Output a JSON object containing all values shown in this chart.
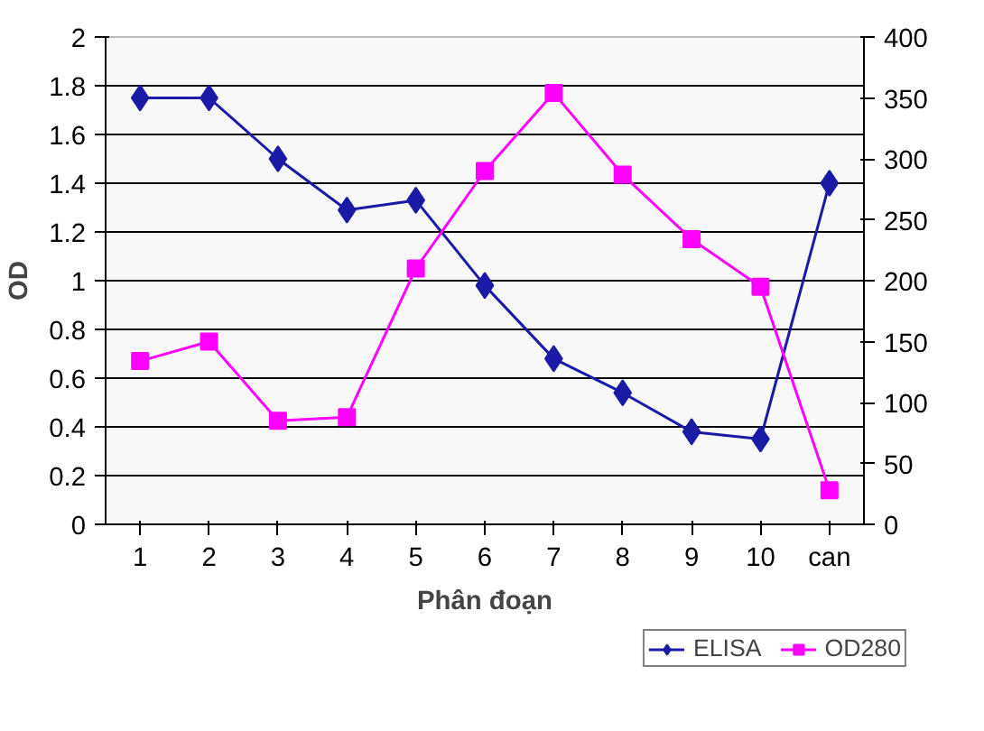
{
  "chart_data": {
    "type": "line",
    "xlabel": "Phân đoạn",
    "ylabel": "OD",
    "categories": [
      "1",
      "2",
      "3",
      "4",
      "5",
      "6",
      "7",
      "8",
      "9",
      "10",
      "can"
    ],
    "series": [
      {
        "name": "ELISA",
        "color": "#1a1aa6",
        "marker": "diamond",
        "values": [
          1.75,
          1.75,
          1.5,
          1.29,
          1.33,
          0.98,
          0.68,
          0.54,
          0.38,
          0.35,
          1.4
        ]
      },
      {
        "name": "OD280",
        "color": "#ff00ff",
        "marker": "square",
        "axis": "y2",
        "values": [
          134,
          150,
          85,
          88,
          210,
          290,
          354,
          287,
          234,
          195,
          28
        ]
      }
    ],
    "ylim": [
      0,
      2
    ],
    "yticks": [
      0,
      0.2,
      0.4,
      0.6,
      0.8,
      1,
      1.2,
      1.4,
      1.6,
      1.8,
      2
    ],
    "y2lim": [
      0,
      400
    ],
    "y2ticks": [
      0,
      50,
      100,
      150,
      200,
      250,
      300,
      350,
      400
    ],
    "grid": "y",
    "legend": "bottom right"
  }
}
